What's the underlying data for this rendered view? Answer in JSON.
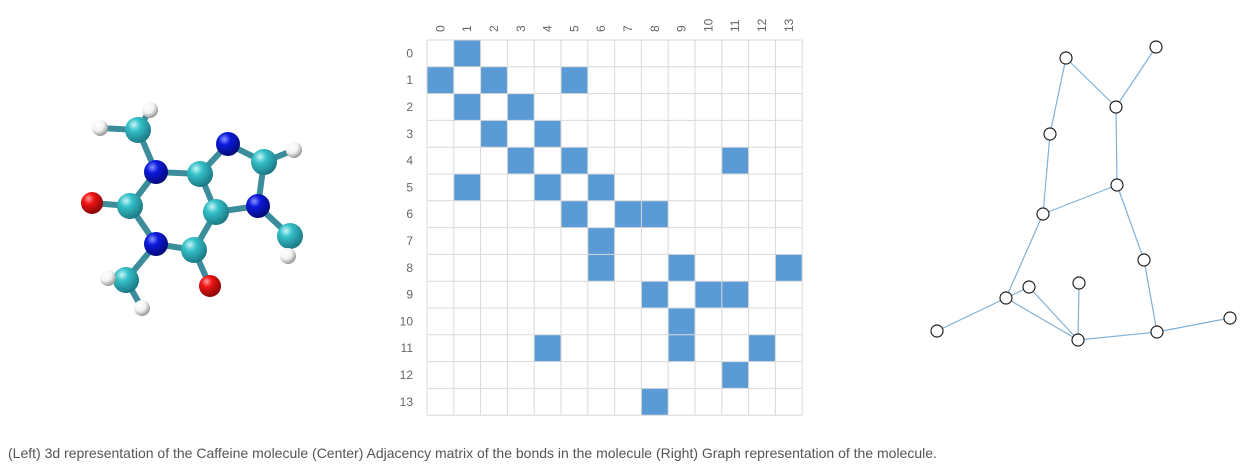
{
  "caption": "(Left) 3d representation of the Caffeine molecule (Center) Adjacency matrix of the bonds in the molecule (Right) Graph representation of the molecule.",
  "colors": {
    "matrix_fill": "#5b9bd5",
    "grid_line": "#d9d9d9",
    "label_text": "#666666",
    "graph_edge": "#7fb1d8",
    "graph_node_stroke": "#222222",
    "atom_carbon": "#34c0c8",
    "atom_nitrogen": "#0b1adc",
    "atom_oxygen": "#ef1414",
    "atom_hydrogen": "#f2f2f2",
    "bond": "#3c8d9b"
  },
  "chart_data": {
    "type": "heatmap",
    "row_labels": [
      "0",
      "1",
      "2",
      "3",
      "4",
      "5",
      "6",
      "7",
      "8",
      "9",
      "10",
      "11",
      "12",
      "13"
    ],
    "col_labels": [
      "0",
      "1",
      "2",
      "3",
      "4",
      "5",
      "6",
      "7",
      "8",
      "9",
      "10",
      "11",
      "12",
      "13"
    ],
    "edges": [
      [
        0,
        1
      ],
      [
        1,
        2
      ],
      [
        1,
        5
      ],
      [
        2,
        3
      ],
      [
        3,
        4
      ],
      [
        4,
        5
      ],
      [
        4,
        11
      ],
      [
        5,
        6
      ],
      [
        6,
        7
      ],
      [
        6,
        8
      ],
      [
        8,
        9
      ],
      [
        8,
        13
      ],
      [
        9,
        10
      ],
      [
        9,
        11
      ],
      [
        11,
        12
      ]
    ]
  },
  "molecule": {
    "atoms": [
      {
        "el": "H"
      },
      {
        "el": "H"
      },
      {
        "el": "C"
      },
      {
        "el": "N"
      },
      {
        "el": "O"
      },
      {
        "el": "C"
      },
      {
        "el": "C"
      },
      {
        "el": "N"
      },
      {
        "el": "C"
      },
      {
        "el": "H"
      },
      {
        "el": "N"
      },
      {
        "el": "C"
      },
      {
        "el": "H"
      },
      {
        "el": "C"
      },
      {
        "el": "N"
      },
      {
        "el": "C"
      },
      {
        "el": "O"
      },
      {
        "el": "C"
      },
      {
        "el": "H"
      },
      {
        "el": "H"
      }
    ],
    "bonds": [
      [
        0,
        2
      ],
      [
        1,
        2
      ],
      [
        2,
        3
      ],
      [
        3,
        5
      ],
      [
        3,
        6
      ],
      [
        5,
        4
      ],
      [
        5,
        14
      ],
      [
        6,
        7
      ],
      [
        6,
        13
      ],
      [
        7,
        8
      ],
      [
        8,
        9
      ],
      [
        8,
        10
      ],
      [
        10,
        13
      ],
      [
        10,
        11
      ],
      [
        11,
        12
      ],
      [
        13,
        15
      ],
      [
        15,
        16
      ],
      [
        15,
        14
      ],
      [
        14,
        17
      ],
      [
        17,
        18
      ],
      [
        17,
        19
      ]
    ]
  },
  "graph": {
    "node_count": 14,
    "edges": [
      [
        0,
        2
      ],
      [
        1,
        2
      ],
      [
        2,
        5
      ],
      [
        0,
        3
      ],
      [
        3,
        6
      ],
      [
        5,
        6
      ],
      [
        5,
        7
      ],
      [
        6,
        8
      ],
      [
        8,
        11
      ],
      [
        7,
        11
      ],
      [
        11,
        9
      ],
      [
        11,
        12
      ],
      [
        8,
        12
      ],
      [
        12,
        13
      ],
      [
        8,
        10
      ],
      [
        9,
        4
      ]
    ]
  }
}
